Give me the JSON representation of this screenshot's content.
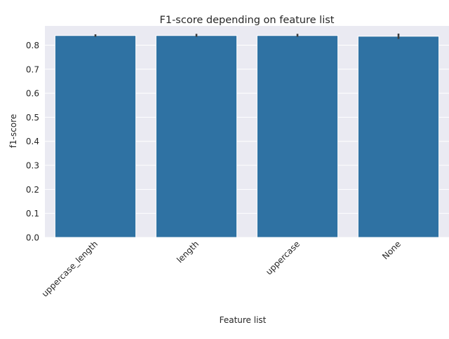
{
  "chart_data": {
    "type": "bar",
    "title": "F1-score depending on feature list",
    "xlabel": "Feature list",
    "ylabel": "f1-score",
    "categories": [
      "uppercase_length",
      "length",
      "uppercase",
      "None"
    ],
    "values": [
      0.84,
      0.84,
      0.84,
      0.837
    ],
    "error_bars": [
      [
        0.835,
        0.845
      ],
      [
        0.835,
        0.847
      ],
      [
        0.835,
        0.847
      ],
      [
        0.826,
        0.848
      ]
    ],
    "ylim": [
      0,
      0.88
    ],
    "yticks": [
      0.0,
      0.1,
      0.2,
      0.3,
      0.4,
      0.5,
      0.6,
      0.7,
      0.8
    ],
    "grid": true,
    "style": "seaborn-darkgrid",
    "colors": {
      "bar": "#2f72a3",
      "error_bar": "#3d3d3d",
      "plot_background": "#eaeaf2",
      "grid": "#ffffff"
    }
  }
}
